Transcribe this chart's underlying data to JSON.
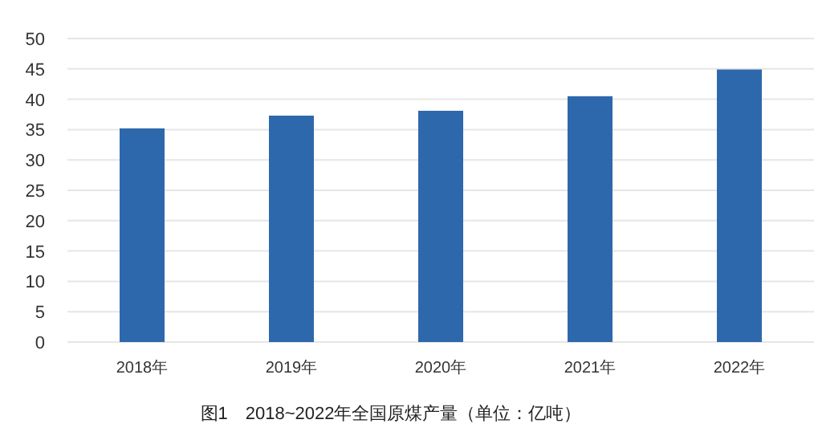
{
  "chart_data": {
    "type": "bar",
    "categories": [
      "2018年",
      "2019年",
      "2020年",
      "2021年",
      "2022年"
    ],
    "values": [
      35.2,
      37.3,
      38.1,
      40.5,
      44.9
    ],
    "color": "#2e68ac",
    "ylim": [
      0,
      50
    ],
    "yticks": [
      0,
      5,
      10,
      15,
      20,
      25,
      30,
      35,
      40,
      45,
      50
    ],
    "grid": "y",
    "annotations": [
      "图1　2018~2022年全国原煤产量（单位：亿吨）"
    ]
  }
}
